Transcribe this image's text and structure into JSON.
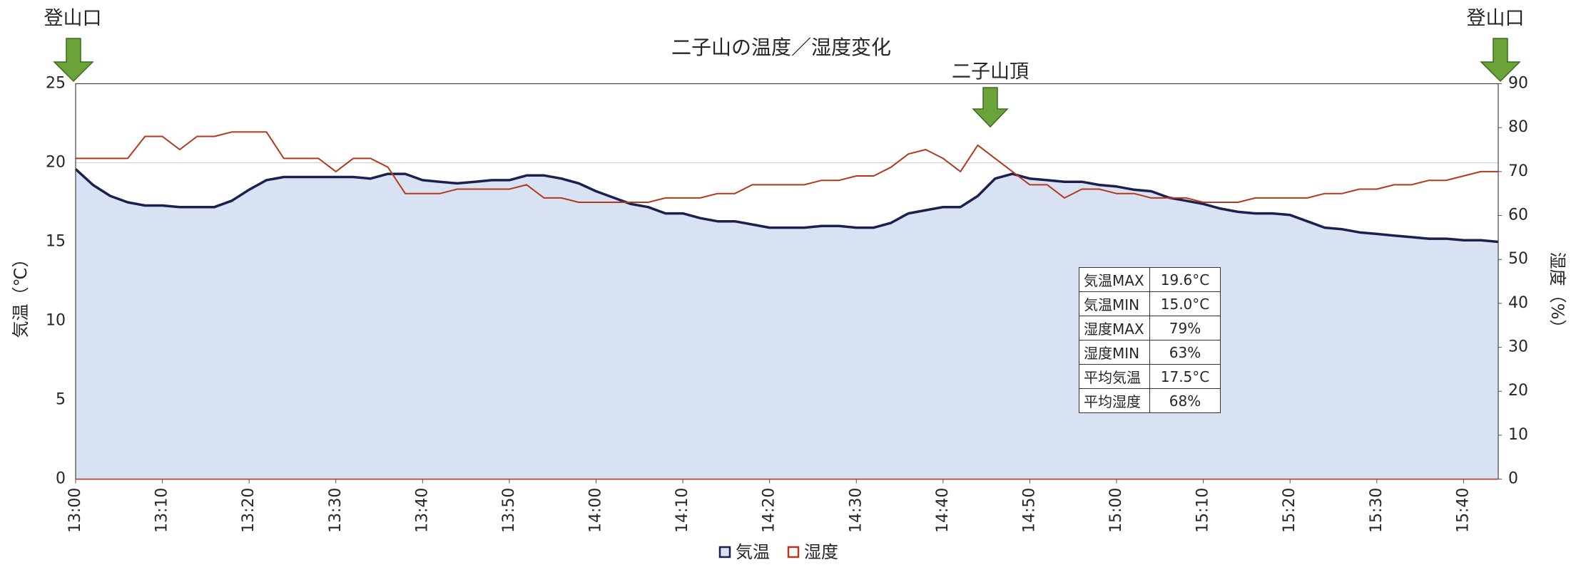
{
  "chart_data": {
    "type": "line",
    "title": "二子山の温度／湿度変化",
    "y_label": "気温（℃）",
    "y2_label": "湿度（%）",
    "annotations": [
      "登山口",
      "二子山頂",
      "登山口"
    ],
    "x": [
      0,
      2,
      4,
      6,
      8,
      10,
      12,
      14,
      16,
      18,
      20,
      22,
      24,
      26,
      28,
      30,
      32,
      34,
      36,
      38,
      40,
      42,
      44,
      46,
      48,
      50,
      52,
      54,
      56,
      58,
      60,
      62,
      64,
      66,
      68,
      70,
      72,
      74,
      76,
      78,
      80,
      82,
      84,
      86,
      88,
      90,
      92,
      94,
      96,
      98,
      100,
      102,
      104,
      106,
      108,
      110,
      112,
      114,
      116,
      118,
      120,
      122,
      124,
      126,
      128,
      130,
      132,
      134,
      136,
      138,
      140,
      142,
      144,
      146,
      148,
      150,
      152,
      154,
      156,
      158,
      160,
      162,
      164
    ],
    "xlim": [
      0,
      164
    ],
    "xticks": [
      {
        "value": 0,
        "label": "13:00"
      },
      {
        "value": 10,
        "label": "13:10"
      },
      {
        "value": 20,
        "label": "13:20"
      },
      {
        "value": 30,
        "label": "13:30"
      },
      {
        "value": 40,
        "label": "13:40"
      },
      {
        "value": 50,
        "label": "13:50"
      },
      {
        "value": 60,
        "label": "14:00"
      },
      {
        "value": 70,
        "label": "14:10"
      },
      {
        "value": 80,
        "label": "14:20"
      },
      {
        "value": 90,
        "label": "14:30"
      },
      {
        "value": 100,
        "label": "14:40"
      },
      {
        "value": 110,
        "label": "14:50"
      },
      {
        "value": 120,
        "label": "15:00"
      },
      {
        "value": 130,
        "label": "15:10"
      },
      {
        "value": 140,
        "label": "15:20"
      },
      {
        "value": 150,
        "label": "15:30"
      },
      {
        "value": 160,
        "label": "15:40"
      }
    ],
    "ylim": [
      0,
      25
    ],
    "yticks": [
      0,
      5,
      10,
      15,
      20,
      25
    ],
    "y2lim": [
      0,
      90
    ],
    "y2ticks": [
      0,
      10,
      20,
      30,
      40,
      50,
      60,
      70,
      80,
      90
    ],
    "grid": true,
    "series": [
      {
        "name": "気温",
        "color": "#1c2050",
        "fill": "#d9e2f3",
        "values": [
          19.6,
          18.6,
          17.9,
          17.5,
          17.3,
          17.3,
          17.2,
          17.2,
          17.2,
          17.6,
          18.3,
          18.9,
          19.1,
          19.1,
          19.1,
          19.1,
          19.1,
          19.0,
          19.3,
          19.3,
          18.9,
          18.8,
          18.7,
          18.8,
          18.9,
          18.9,
          19.2,
          19.2,
          19.0,
          18.7,
          18.2,
          17.8,
          17.4,
          17.2,
          16.8,
          16.8,
          16.5,
          16.3,
          16.3,
          16.1,
          15.9,
          15.9,
          15.9,
          16.0,
          16.0,
          15.9,
          15.9,
          16.2,
          16.8,
          17.0,
          17.2,
          17.2,
          17.9,
          19.0,
          19.3,
          19.0,
          18.9,
          18.8,
          18.8,
          18.6,
          18.5,
          18.3,
          18.2,
          17.8,
          17.6,
          17.4,
          17.1,
          16.9,
          16.8,
          16.8,
          16.7,
          16.3,
          15.9,
          15.8,
          15.6,
          15.5,
          15.4,
          15.3,
          15.2,
          15.2,
          15.1,
          15.1,
          15.0
        ]
      },
      {
        "name": "湿度",
        "color": "#b5381c",
        "axis": "y2",
        "values": [
          73,
          73,
          73,
          73,
          78,
          78,
          75,
          78,
          78,
          79,
          79,
          79,
          73,
          73,
          73,
          70,
          73,
          73,
          71,
          65,
          65,
          65,
          66,
          66,
          66,
          66,
          67,
          64,
          64,
          63,
          63,
          63,
          63,
          63,
          64,
          64,
          64,
          65,
          65,
          67,
          67,
          67,
          67,
          68,
          68,
          69,
          69,
          71,
          74,
          75,
          73,
          70,
          76,
          73,
          70,
          67,
          67,
          64,
          66,
          66,
          65,
          65,
          64,
          64,
          64,
          63,
          63,
          63,
          64,
          64,
          64,
          64,
          65,
          65,
          66,
          66,
          67,
          67,
          68,
          68,
          69,
          70,
          70
        ]
      }
    ]
  },
  "stats_table": {
    "rows": [
      [
        "気温MAX",
        "19.6°C"
      ],
      [
        "気温MIN",
        "15.0°C"
      ],
      [
        "湿度MAX",
        "79%"
      ],
      [
        "湿度MIN",
        "63%"
      ],
      [
        "平均気温",
        "17.5°C"
      ],
      [
        "平均湿度",
        "68%"
      ]
    ]
  }
}
